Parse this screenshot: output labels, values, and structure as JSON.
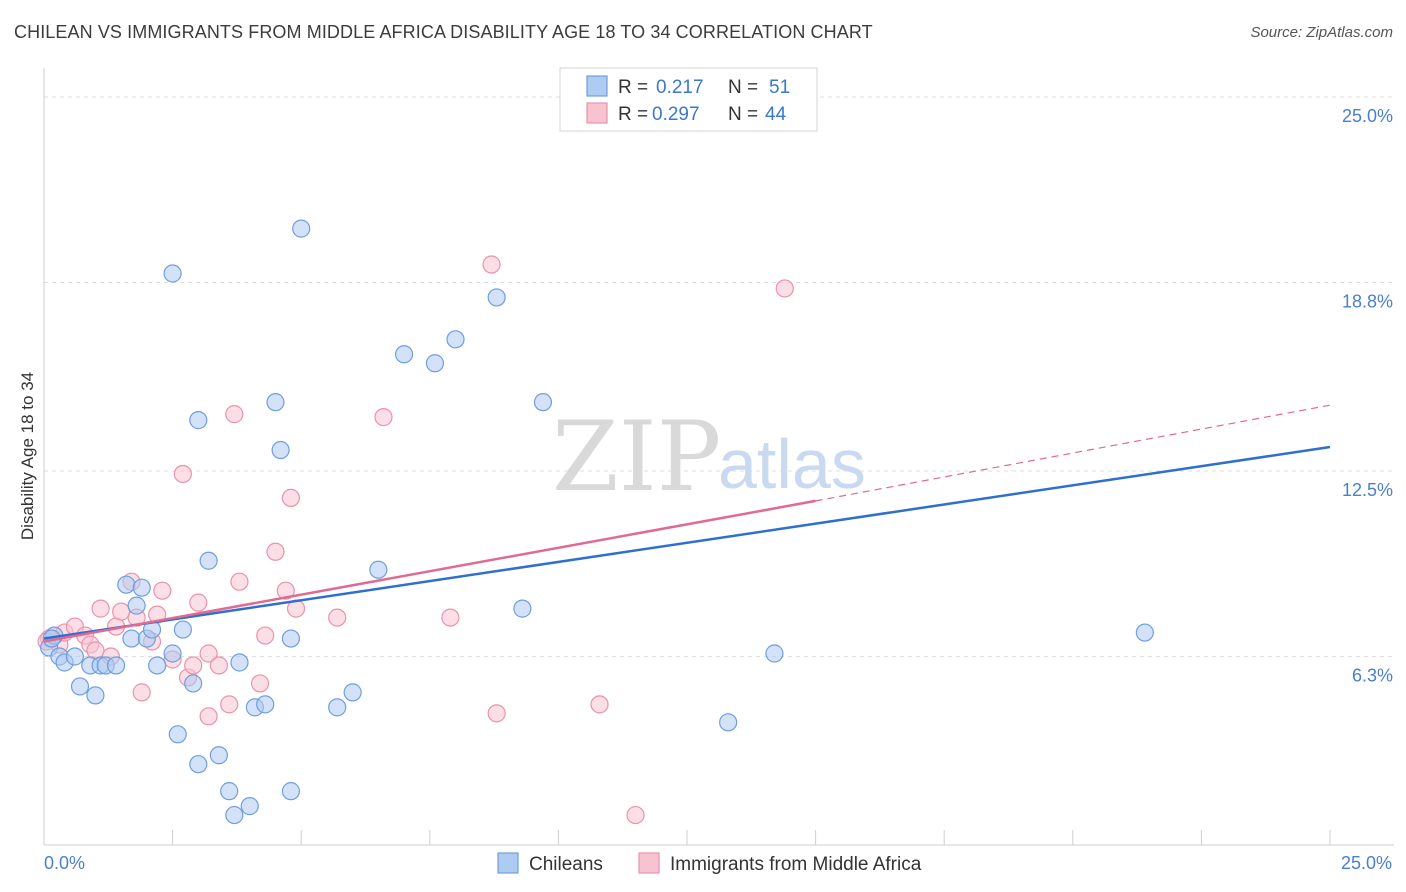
{
  "header": {
    "title": "CHILEAN VS IMMIGRANTS FROM MIDDLE AFRICA DISABILITY AGE 18 TO 34 CORRELATION CHART",
    "source": "Source: ZipAtlas.com"
  },
  "watermark": {
    "zip": "ZIP",
    "atlas": "atlas"
  },
  "legend": {
    "rows": [
      {
        "r_label": "R = ",
        "r_value": "0.217",
        "n_label": "N = ",
        "n_value": "51"
      },
      {
        "r_label": "R = ",
        "r_value": "0.297",
        "n_label": "N = ",
        "n_value": "44"
      }
    ]
  },
  "colors": {
    "chileans_fill": "#aecbf2",
    "chileans_stroke": "#6f9fdc",
    "chileans_line": "#2f6fce",
    "immigrants_fill": "#f7c3d1",
    "immigrants_stroke": "#e993ac",
    "immigrants_line": "#e06a92",
    "grid": "#dedede",
    "axis_text": "#4a7fcf"
  },
  "chart_data": {
    "type": "scatter",
    "title": "CHILEAN VS IMMIGRANTS FROM MIDDLE AFRICA DISABILITY AGE 18 TO 34 CORRELATION CHART",
    "xlabel": "",
    "ylabel": "Disability Age 18 to 34",
    "xlim": [
      0,
      25
    ],
    "ylim": [
      0,
      25.6
    ],
    "x_tick_labels": [
      "0.0%",
      "25.0%"
    ],
    "y_ticks": [
      {
        "value": 6.3,
        "label": "6.3%"
      },
      {
        "value": 12.5,
        "label": "12.5%"
      },
      {
        "value": 18.8,
        "label": "18.8%"
      },
      {
        "value": 25.0,
        "label": "25.0%"
      }
    ],
    "grid": true,
    "legend_position": "top-center",
    "series": [
      {
        "name": "Chileans",
        "r": 0.217,
        "n": 51,
        "trend": {
          "x": [
            0,
            25
          ],
          "y": [
            6.9,
            13.3
          ]
        },
        "points": [
          [
            0.1,
            6.6
          ],
          [
            0.2,
            7.0
          ],
          [
            0.3,
            6.3
          ],
          [
            0.4,
            6.1
          ],
          [
            0.6,
            6.3
          ],
          [
            0.7,
            5.3
          ],
          [
            0.9,
            6.0
          ],
          [
            1.0,
            5.0
          ],
          [
            1.1,
            6.0
          ],
          [
            1.2,
            6.0
          ],
          [
            1.6,
            8.7
          ],
          [
            1.7,
            6.9
          ],
          [
            1.8,
            8.0
          ],
          [
            1.9,
            8.6
          ],
          [
            2.0,
            6.9
          ],
          [
            2.1,
            7.2
          ],
          [
            2.2,
            6.0
          ],
          [
            2.5,
            6.4
          ],
          [
            2.5,
            19.1
          ],
          [
            2.6,
            3.7
          ],
          [
            2.7,
            7.2
          ],
          [
            2.9,
            5.4
          ],
          [
            3.0,
            14.2
          ],
          [
            3.0,
            2.7
          ],
          [
            3.2,
            9.5
          ],
          [
            3.4,
            3.0
          ],
          [
            3.6,
            1.8
          ],
          [
            3.7,
            1.0
          ],
          [
            3.8,
            6.1
          ],
          [
            4.0,
            1.3
          ],
          [
            4.1,
            4.6
          ],
          [
            4.3,
            4.7
          ],
          [
            4.5,
            14.8
          ],
          [
            4.6,
            13.2
          ],
          [
            4.8,
            6.9
          ],
          [
            4.8,
            1.8
          ],
          [
            5.0,
            20.6
          ],
          [
            5.7,
            4.6
          ],
          [
            6.0,
            5.1
          ],
          [
            6.5,
            9.2
          ],
          [
            7.0,
            16.4
          ],
          [
            7.6,
            16.1
          ],
          [
            8.0,
            16.9
          ],
          [
            8.8,
            18.3
          ],
          [
            9.3,
            7.9
          ],
          [
            9.7,
            14.8
          ],
          [
            13.3,
            4.1
          ],
          [
            14.2,
            6.4
          ],
          [
            21.4,
            7.1
          ],
          [
            0.15,
            6.9
          ],
          [
            1.4,
            6.0
          ]
        ]
      },
      {
        "name": "Immigrants from Middle Africa",
        "r": 0.297,
        "n": 44,
        "trend": {
          "x": [
            0,
            15
          ],
          "y": [
            6.8,
            11.5
          ],
          "dashed_extension": {
            "x": [
              15,
              25
            ],
            "y": [
              11.5,
              14.7
            ]
          }
        },
        "points": [
          [
            0.1,
            6.9
          ],
          [
            0.2,
            7.0
          ],
          [
            0.3,
            6.7
          ],
          [
            0.4,
            7.1
          ],
          [
            0.6,
            7.3
          ],
          [
            0.8,
            7.0
          ],
          [
            0.9,
            6.7
          ],
          [
            1.1,
            7.9
          ],
          [
            1.3,
            6.3
          ],
          [
            1.4,
            7.3
          ],
          [
            1.5,
            7.8
          ],
          [
            1.7,
            8.8
          ],
          [
            1.8,
            7.6
          ],
          [
            1.9,
            5.1
          ],
          [
            2.1,
            6.8
          ],
          [
            2.2,
            7.7
          ],
          [
            2.3,
            8.5
          ],
          [
            2.5,
            6.2
          ],
          [
            2.7,
            12.4
          ],
          [
            2.8,
            5.6
          ],
          [
            2.9,
            6.0
          ],
          [
            3.0,
            8.1
          ],
          [
            3.2,
            6.4
          ],
          [
            3.2,
            4.3
          ],
          [
            3.4,
            6.0
          ],
          [
            3.6,
            4.7
          ],
          [
            3.7,
            14.4
          ],
          [
            3.8,
            8.8
          ],
          [
            4.2,
            5.4
          ],
          [
            4.3,
            7.0
          ],
          [
            4.5,
            9.8
          ],
          [
            4.7,
            8.5
          ],
          [
            4.8,
            11.6
          ],
          [
            4.9,
            7.9
          ],
          [
            5.7,
            7.6
          ],
          [
            6.6,
            14.3
          ],
          [
            7.9,
            7.6
          ],
          [
            8.7,
            19.4
          ],
          [
            8.8,
            4.4
          ],
          [
            10.8,
            4.7
          ],
          [
            11.5,
            1.0
          ],
          [
            14.4,
            18.6
          ],
          [
            0.05,
            6.8
          ],
          [
            1.0,
            6.5
          ]
        ]
      }
    ]
  },
  "bottom_legend": {
    "items": [
      {
        "label": "Chileans"
      },
      {
        "label": "Immigrants from Middle Africa"
      }
    ]
  }
}
